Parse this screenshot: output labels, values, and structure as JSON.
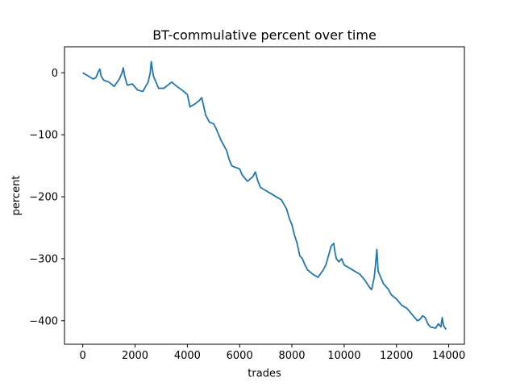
{
  "chart_data": {
    "type": "line",
    "title": "BT-commulative percent over time",
    "xlabel": "trades",
    "ylabel": "percent",
    "xlim": [
      -700,
      14600
    ],
    "ylim": [
      -438,
      42
    ],
    "x_ticks": [
      0,
      2000,
      4000,
      6000,
      8000,
      10000,
      12000,
      14000
    ],
    "y_ticks": [
      0,
      -100,
      -200,
      -300,
      -400
    ],
    "x_tick_labels": [
      "0",
      "2000",
      "4000",
      "6000",
      "8000",
      "10000",
      "12000",
      "14000"
    ],
    "y_tick_labels": [
      "0",
      "−100",
      "−200",
      "−300",
      "−400"
    ],
    "grid": false,
    "legend": "none",
    "series": [
      {
        "color": "#1f77b4",
        "x": [
          0,
          200,
          400,
          500,
          600,
          650,
          700,
          800,
          1000,
          1200,
          1400,
          1500,
          1550,
          1600,
          1700,
          1900,
          2100,
          2300,
          2500,
          2580,
          2620,
          2700,
          2800,
          2900,
          3100,
          3400,
          3600,
          3800,
          4000,
          4100,
          4300,
          4450,
          4550,
          4700,
          4850,
          5000,
          5100,
          5200,
          5300,
          5500,
          5600,
          5700,
          5800,
          6000,
          6100,
          6200,
          6300,
          6500,
          6600,
          6700,
          6800,
          7000,
          7200,
          7400,
          7600,
          7800,
          7900,
          8000,
          8100,
          8200,
          8300,
          8400,
          8500,
          8600,
          8800,
          9000,
          9200,
          9300,
          9400,
          9500,
          9600,
          9650,
          9700,
          9800,
          9900,
          10000,
          10200,
          10400,
          10600,
          10800,
          10950,
          11050,
          11150,
          11200,
          11250,
          11300,
          11400,
          11500,
          11600,
          11700,
          11800,
          12000,
          12200,
          12400,
          12600,
          12800,
          12900,
          13000,
          13100,
          13200,
          13300,
          13500,
          13600,
          13700,
          13750,
          13800,
          13900
        ],
        "y": [
          0,
          -5,
          -10,
          -8,
          2,
          6,
          -5,
          -12,
          -15,
          -22,
          -10,
          0,
          8,
          -5,
          -20,
          -18,
          -28,
          -30,
          -15,
          0,
          18,
          -5,
          -15,
          -25,
          -25,
          -15,
          -22,
          -28,
          -35,
          -55,
          -50,
          -45,
          -40,
          -68,
          -80,
          -82,
          -90,
          -100,
          -110,
          -125,
          -140,
          -150,
          -152,
          -155,
          -165,
          -170,
          -175,
          -168,
          -160,
          -175,
          -185,
          -190,
          -195,
          -200,
          -205,
          -220,
          -235,
          -245,
          -262,
          -275,
          -295,
          -300,
          -310,
          -318,
          -325,
          -330,
          -318,
          -310,
          -295,
          -280,
          -275,
          -290,
          -300,
          -305,
          -300,
          -310,
          -315,
          -320,
          -325,
          -335,
          -345,
          -350,
          -330,
          -310,
          -285,
          -320,
          -330,
          -340,
          -345,
          -350,
          -358,
          -365,
          -375,
          -380,
          -390,
          -400,
          -398,
          -392,
          -395,
          -405,
          -410,
          -412,
          -405,
          -410,
          -395,
          -408,
          -414
        ]
      }
    ]
  }
}
